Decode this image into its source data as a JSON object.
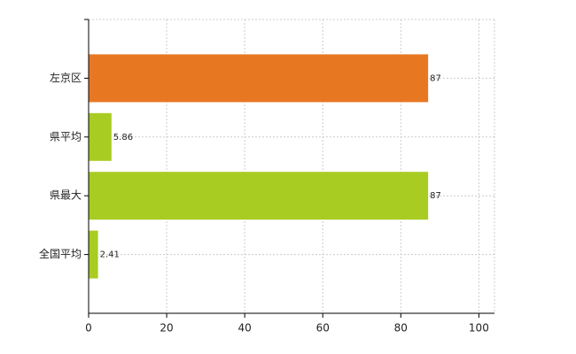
{
  "chart_data": {
    "type": "hbar",
    "categories": [
      "左京区",
      "県平均",
      "県最大",
      "全国平均"
    ],
    "values": [
      87,
      5.86,
      87,
      2.41
    ],
    "colors": [
      "#e87722",
      "#a8cc22",
      "#a8cc22",
      "#a8cc22"
    ],
    "xlim": [
      0,
      104
    ],
    "xticks": [
      0,
      20,
      40,
      60,
      80,
      100
    ],
    "grid": true
  }
}
